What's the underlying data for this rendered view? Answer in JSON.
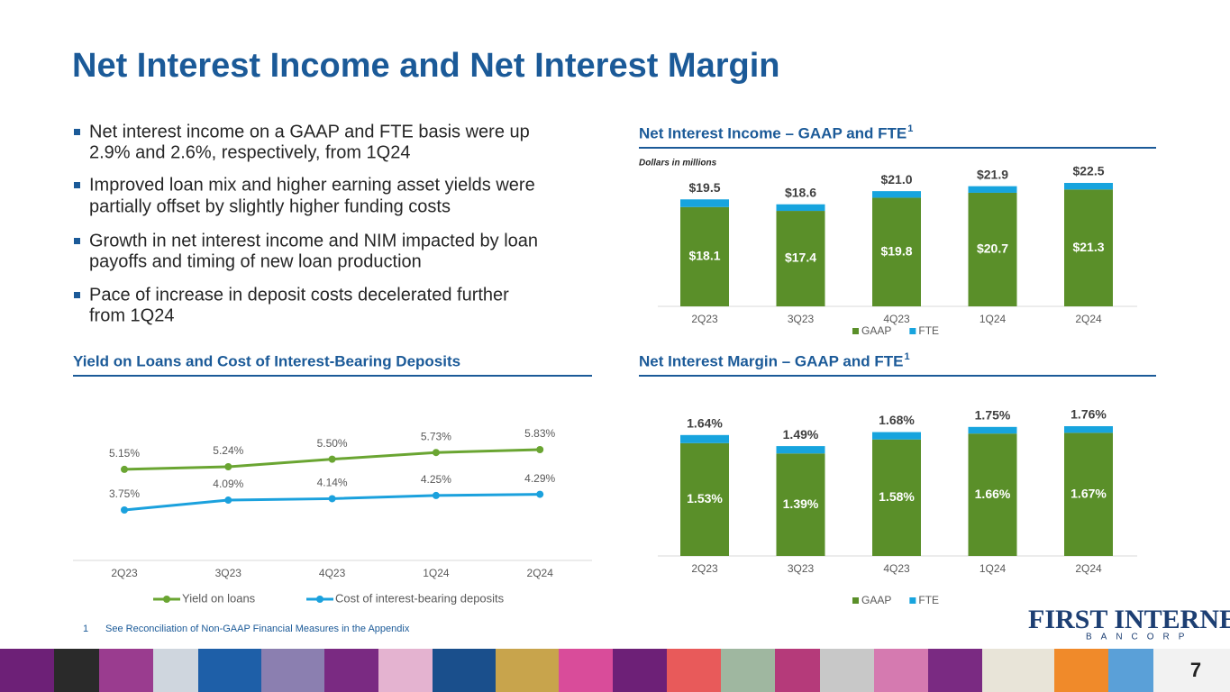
{
  "title": "Net Interest Income and Net Interest Margin",
  "bullets": [
    [
      "Net interest income on a GAAP and FTE basis were up",
      "2.9% and 2.6%, respectively, from 1Q24"
    ],
    [
      "Improved loan mix and higher earning asset yields were",
      "partially offset by slightly higher funding costs"
    ],
    [
      "Growth in net interest income and NIM impacted by loan",
      "payoffs and timing of new loan production"
    ],
    [
      "Pace of increase in deposit costs decelerated further",
      "from 1Q24"
    ]
  ],
  "footnote": {
    "number": "1",
    "text": "See Reconciliation of Non-GAAP Financial Measures in the Appendix"
  },
  "logo": {
    "name": "FIRST INTERNET",
    "sub": "BANCORP"
  },
  "page_number": "7",
  "chart_data": [
    {
      "type": "bar",
      "stacked": true,
      "title": "Net Interest Income – GAAP and FTE",
      "title_superscript": "1",
      "subtitle": "Dollars in millions",
      "categories": [
        "2Q23",
        "3Q23",
        "4Q23",
        "1Q24",
        "2Q24"
      ],
      "series": [
        {
          "name": "GAAP",
          "color": "#5a8f29",
          "values": [
            18.1,
            17.4,
            19.8,
            20.7,
            21.3
          ],
          "value_labels": [
            "$18.1",
            "$17.4",
            "$19.8",
            "$20.7",
            "$21.3"
          ]
        },
        {
          "name": "FTE",
          "color": "#17a4de",
          "values": [
            1.4,
            1.2,
            1.2,
            1.2,
            1.2
          ]
        }
      ],
      "totals": [
        19.5,
        18.6,
        21.0,
        21.9,
        22.5
      ],
      "total_labels": [
        "$19.5",
        "$18.6",
        "$21.0",
        "$21.9",
        "$22.5"
      ]
    },
    {
      "type": "line",
      "title": "Yield on Loans and Cost of Interest-Bearing Deposits",
      "categories": [
        "2Q23",
        "3Q23",
        "4Q23",
        "1Q24",
        "2Q24"
      ],
      "series": [
        {
          "name": "Yield on loans",
          "color": "#6aa532",
          "values": [
            5.15,
            5.24,
            5.5,
            5.73,
            5.83
          ],
          "value_labels": [
            "5.15%",
            "5.24%",
            "5.50%",
            "5.73%",
            "5.83%"
          ]
        },
        {
          "name": "Cost of interest-bearing deposits",
          "color": "#1ba1dd",
          "values": [
            3.75,
            4.09,
            4.14,
            4.25,
            4.29
          ],
          "value_labels": [
            "3.75%",
            "4.09%",
            "4.14%",
            "4.25%",
            "4.29%"
          ]
        }
      ]
    },
    {
      "type": "bar",
      "stacked": true,
      "title": "Net Interest Margin – GAAP and FTE",
      "title_superscript": "1",
      "categories": [
        "2Q23",
        "3Q23",
        "4Q23",
        "1Q24",
        "2Q24"
      ],
      "series": [
        {
          "name": "GAAP",
          "color": "#5a8f29",
          "values": [
            1.53,
            1.39,
            1.58,
            1.66,
            1.67
          ],
          "value_labels": [
            "1.53%",
            "1.39%",
            "1.58%",
            "1.66%",
            "1.67%"
          ]
        },
        {
          "name": "FTE",
          "color": "#17a4de",
          "values": [
            0.11,
            0.1,
            0.1,
            0.09,
            0.09
          ]
        }
      ],
      "totals": [
        1.64,
        1.49,
        1.68,
        1.75,
        1.76
      ],
      "total_labels": [
        "1.64%",
        "1.49%",
        "1.68%",
        "1.75%",
        "1.76%"
      ]
    }
  ]
}
